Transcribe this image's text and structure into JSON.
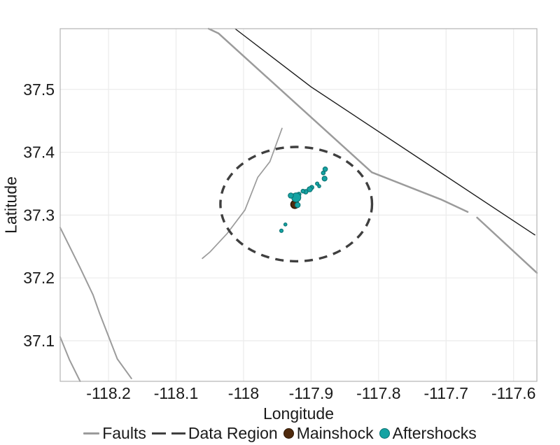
{
  "chart_data": {
    "type": "scatter",
    "title": "",
    "xlabel": "Longitude",
    "ylabel": "Latitude",
    "xlim": [
      -118.2716,
      -117.5655
    ],
    "ylim": [
      37.0354,
      37.5966
    ],
    "x_ticks": [
      -118.2,
      -118.1,
      -118.0,
      -117.9,
      -117.8,
      -117.7,
      -117.6
    ],
    "x_tick_labels": [
      "-118.2",
      "-118.1",
      "-118",
      "-117.9",
      "-117.8",
      "-117.7",
      "-117.6"
    ],
    "y_ticks": [
      37.1,
      37.2,
      37.3,
      37.4,
      37.5
    ],
    "y_tick_labels": [
      "37.1",
      "37.2",
      "37.3",
      "37.4",
      "37.5"
    ],
    "grid": true,
    "legend_position": "bottom",
    "colors": {
      "fault": "#9b9b9b",
      "boundary": "#1a1a1a",
      "region": "#3f3f3f",
      "aftershock_fill": "#15a3a3",
      "aftershock_stroke": "#0a7171",
      "mainshock_fill": "#4f2a0d",
      "mainshock_stroke": "#2e1804",
      "grid": "#ebebeb",
      "panel_border": "#b3b3b3",
      "text": "#1a1a1a"
    },
    "faults": [
      {
        "width": 2.5,
        "points": [
          [
            -118.0518,
            37.5966
          ],
          [
            -118.037,
            37.589
          ],
          [
            -117.81,
            37.368
          ],
          [
            -117.708,
            37.325
          ],
          [
            -117.668,
            37.305
          ]
        ]
      },
      {
        "width": 2.5,
        "points": [
          [
            -117.654,
            37.296
          ],
          [
            -117.5655,
            37.208
          ]
        ]
      },
      {
        "width": 1.7,
        "points": [
          [
            -117.943,
            37.438
          ],
          [
            -117.961,
            37.385
          ],
          [
            -117.979,
            37.36
          ],
          [
            -117.998,
            37.308
          ],
          [
            -118.024,
            37.271
          ],
          [
            -118.05,
            37.241
          ],
          [
            -118.061,
            37.231
          ]
        ]
      },
      {
        "width": 2.0,
        "points": [
          [
            -118.2716,
            37.28
          ],
          [
            -118.242,
            37.216
          ],
          [
            -118.223,
            37.173
          ],
          [
            -118.213,
            37.143
          ],
          [
            -118.187,
            37.071
          ],
          [
            -118.166,
            37.04
          ]
        ]
      },
      {
        "width": 2.0,
        "points": [
          [
            -118.2716,
            37.106
          ],
          [
            -118.258,
            37.07
          ],
          [
            -118.242,
            37.0354
          ]
        ]
      }
    ],
    "boundary_line": {
      "width": 1.4,
      "points": [
        [
          -118.0126,
          37.5966
        ],
        [
          -117.9,
          37.504
        ],
        [
          -117.568,
          37.268
        ]
      ]
    },
    "data_region": {
      "center": [
        -117.922,
        37.3174
      ],
      "rx": 0.1123,
      "ry": 0.091
    },
    "mainshock": {
      "lon": -117.924,
      "lat": 37.317,
      "size": 11.5
    },
    "aftershocks": [
      {
        "lon": -117.879,
        "lat": 37.373,
        "size": 6.5
      },
      {
        "lon": -117.882,
        "lat": 37.367,
        "size": 5.5
      },
      {
        "lon": -117.88,
        "lat": 37.358,
        "size": 7.0
      },
      {
        "lon": -117.891,
        "lat": 37.35,
        "size": 5.0
      },
      {
        "lon": -117.888,
        "lat": 37.346,
        "size": 4.5
      },
      {
        "lon": -117.899,
        "lat": 37.344,
        "size": 6.0
      },
      {
        "lon": -117.902,
        "lat": 37.341,
        "size": 7.5
      },
      {
        "lon": -117.908,
        "lat": 37.337,
        "size": 6.5
      },
      {
        "lon": -117.912,
        "lat": 37.338,
        "size": 5.5
      },
      {
        "lon": -117.918,
        "lat": 37.333,
        "size": 6.0
      },
      {
        "lon": -117.922,
        "lat": 37.328,
        "size": 13.0
      },
      {
        "lon": -117.93,
        "lat": 37.331,
        "size": 7.5
      },
      {
        "lon": -117.92,
        "lat": 37.316,
        "size": 7.5
      },
      {
        "lon": -117.938,
        "lat": 37.285,
        "size": 4.5
      },
      {
        "lon": -117.944,
        "lat": 37.275,
        "size": 5.0
      }
    ],
    "legend": [
      {
        "label": "Faults",
        "type": "line"
      },
      {
        "label": "Data Region",
        "type": "dash"
      },
      {
        "label": "Mainshock",
        "type": "dot"
      },
      {
        "label": "Aftershocks",
        "type": "dot"
      }
    ]
  }
}
